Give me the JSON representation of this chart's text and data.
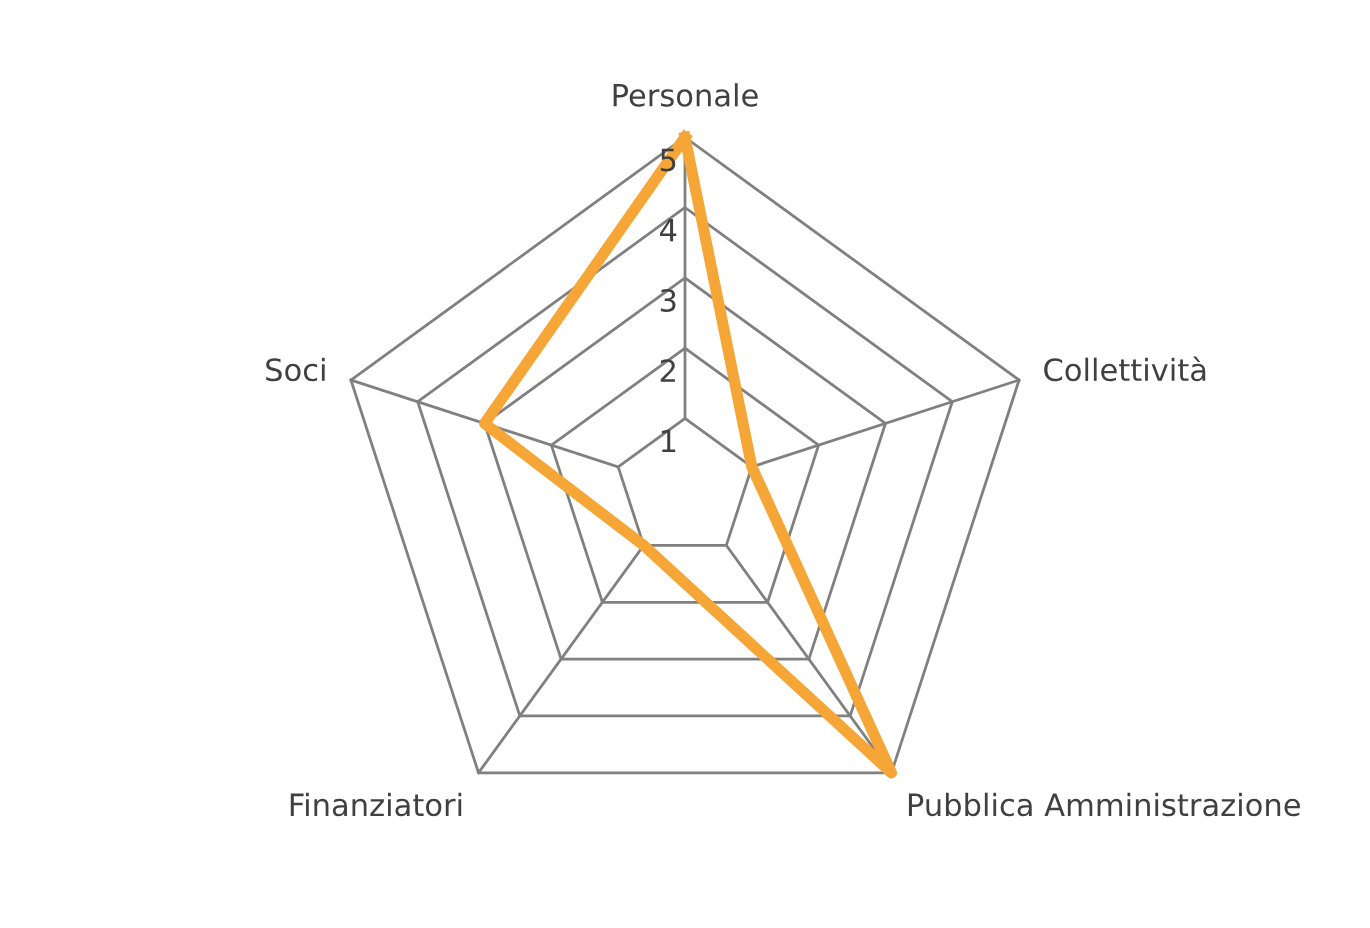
{
  "chart_data": {
    "type": "radar",
    "categories": [
      "Personale",
      "Collettività",
      "Pubblica Amministrazione",
      "Finanziatori",
      "Soci"
    ],
    "series": [
      {
        "color": "#f5a636",
        "values": [
          5,
          1,
          5,
          1,
          3
        ]
      }
    ],
    "ylim": [
      0,
      5
    ],
    "yticks": [
      1,
      2,
      3,
      4,
      5
    ],
    "grid": true
  }
}
